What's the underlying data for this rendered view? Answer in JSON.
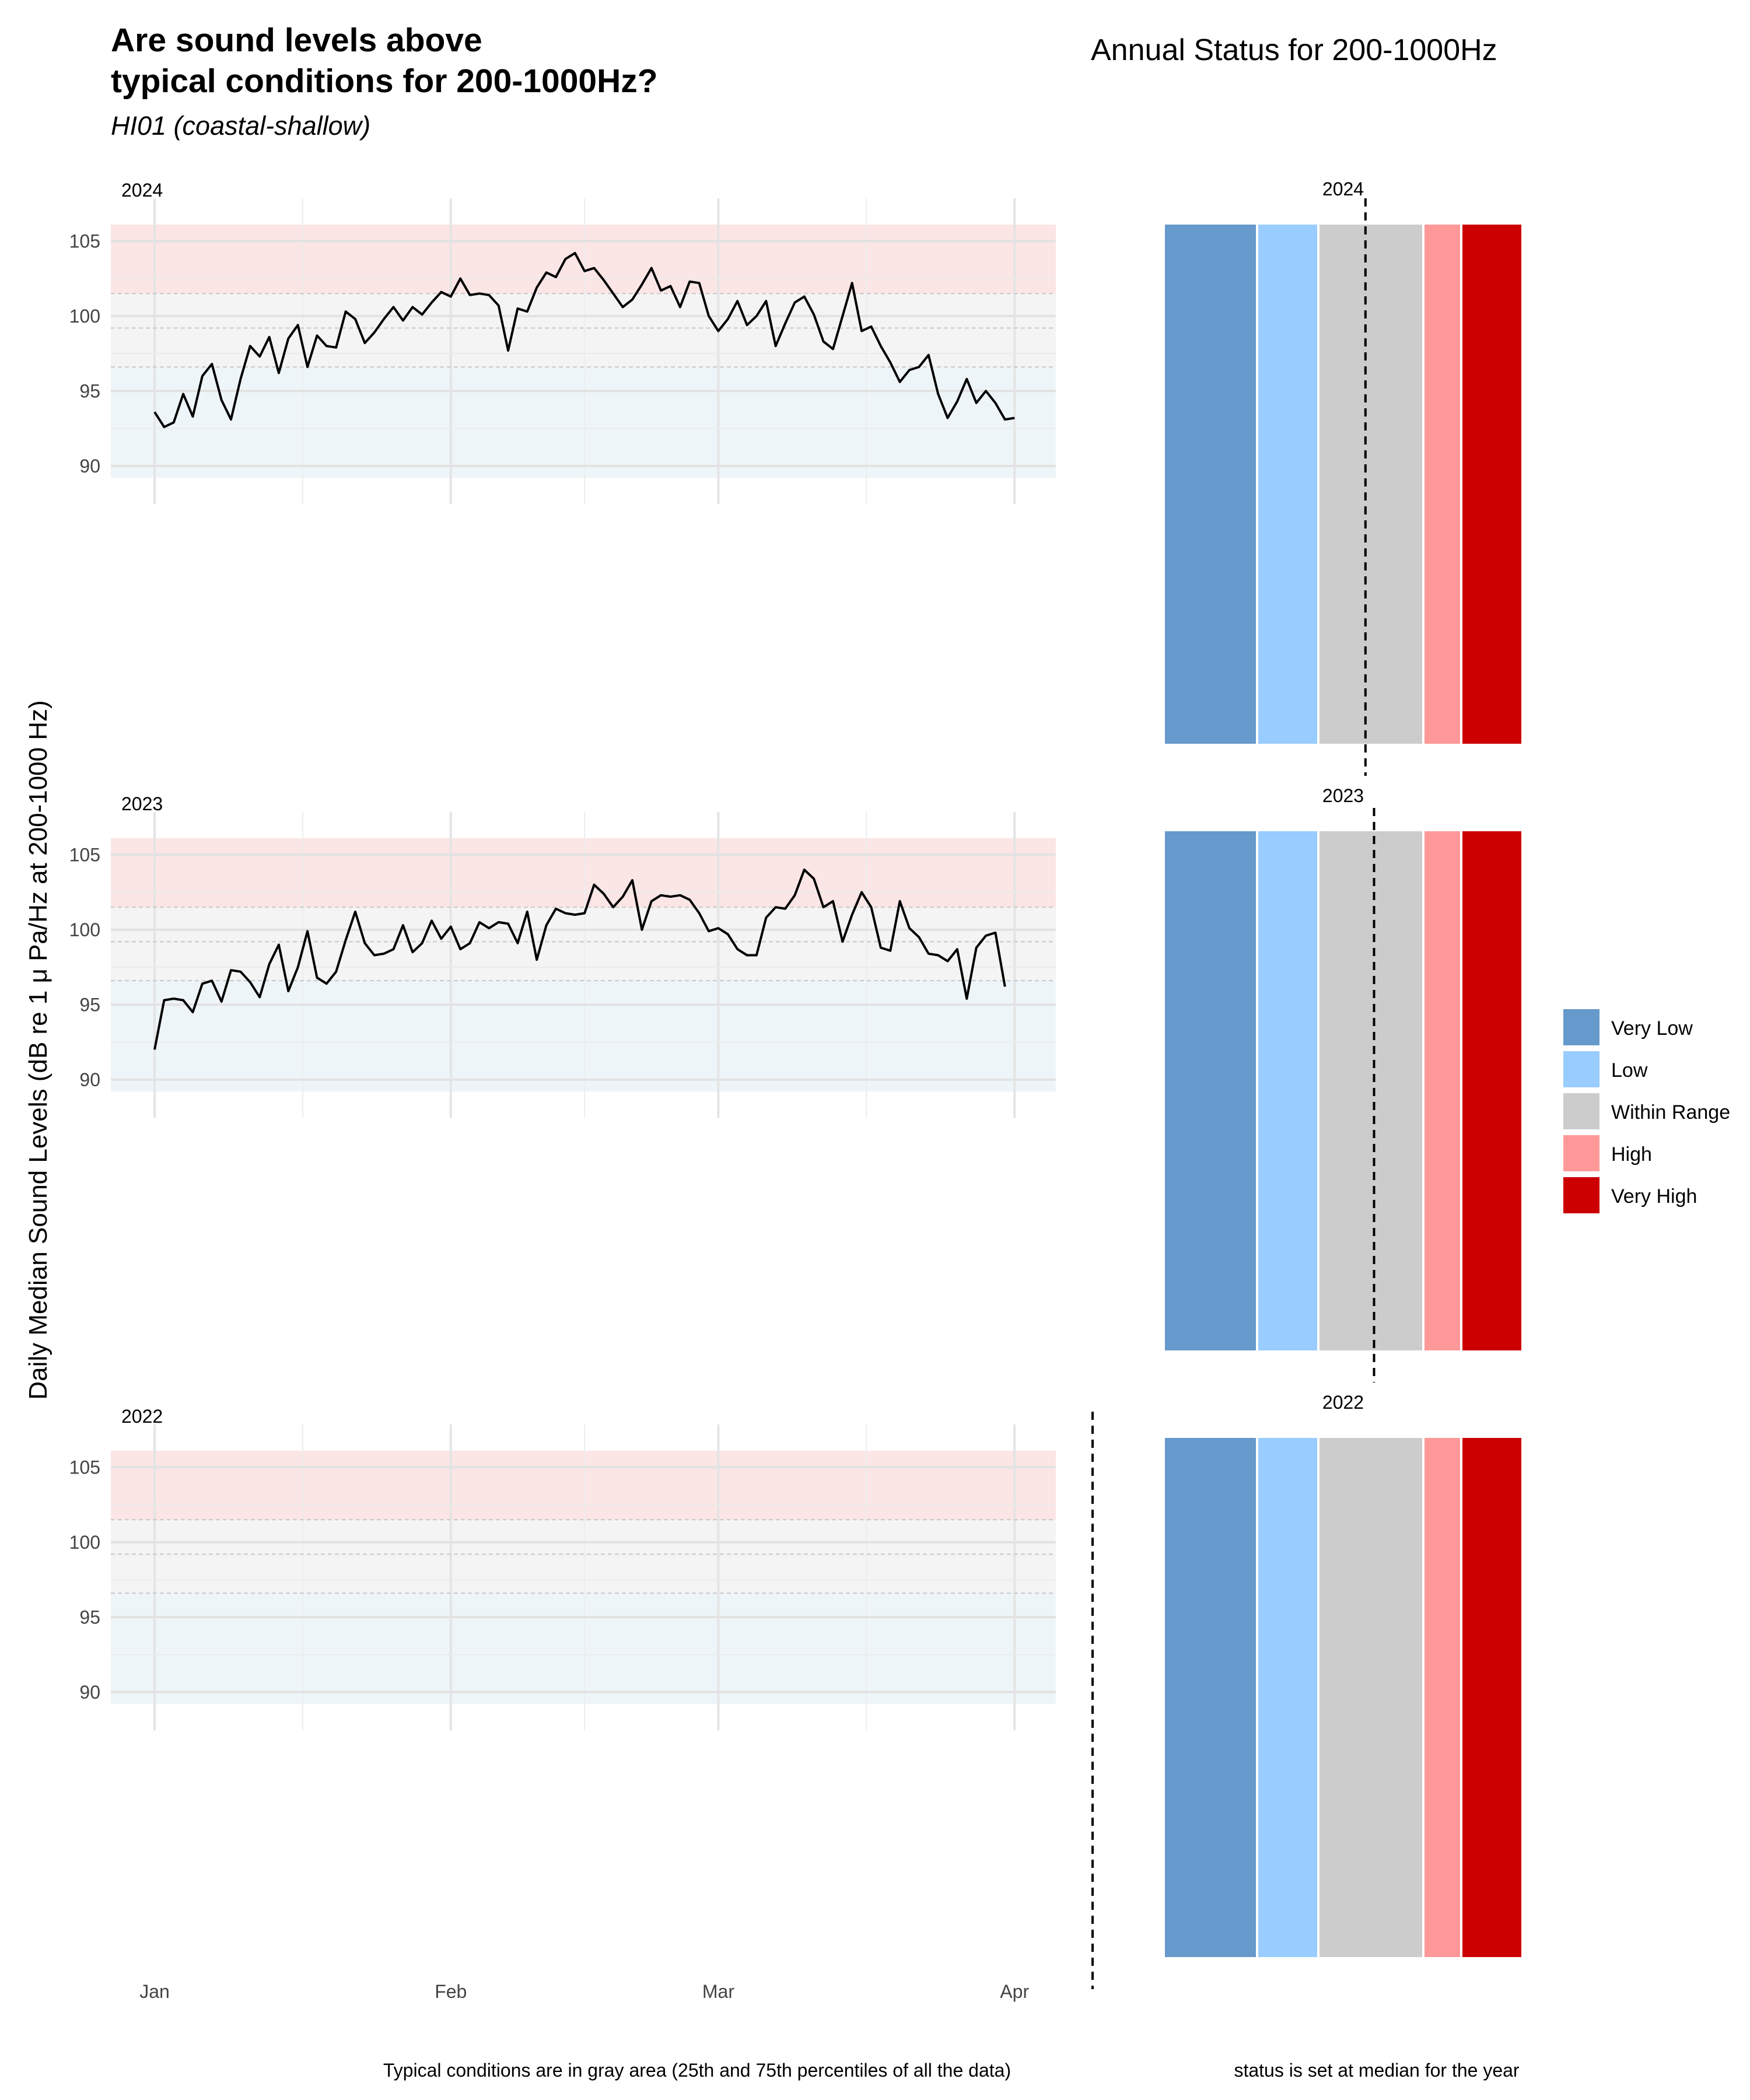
{
  "header": {
    "title_line1": "Are sound levels above",
    "title_line2": "typical conditions for 200-1000Hz?",
    "subtitle": "HI01 (coastal-shallow)",
    "right_title": "Annual Status for 200-1000Hz"
  },
  "captions": {
    "left": "Typical conditions are in gray area (25th and 75th percentiles of all the data)",
    "right": "status is set at median for the year"
  },
  "colors": {
    "very_low": "#6699CC",
    "low": "#99CCFF",
    "within_range": "#CCCCCC",
    "high": "#FF9999",
    "very_high": "#CC0000",
    "band_high": "#FBE5E5",
    "band_typical": "#F4F4F4",
    "band_low": "#EEF5F9"
  },
  "chart_data": [
    {
      "type": "line",
      "title": "Are sound levels above typical conditions for 200-1000Hz?",
      "subtitle": "HI01 (coastal-shallow)",
      "ylabel": "Daily Median Sound Levels (dB re 1 μ Pa/Hz at 200-1000 Hz)",
      "ylim": [
        89.2,
        106.1
      ],
      "yticks": [
        90,
        95,
        100,
        105
      ],
      "x_tick_labels": [
        "Jan",
        "Feb",
        "Mar",
        "Apr"
      ],
      "x_tick_days": [
        0,
        31,
        59,
        90
      ],
      "x_minor_days": [
        15.5,
        45,
        74.5
      ],
      "bands": {
        "p25": 96.6,
        "median": 99.2,
        "p75": 101.5,
        "very_high_top": 106.1,
        "very_low_bottom": 89.2
      },
      "grid": true,
      "facets": [
        {
          "year": "2024",
          "x_days": [
            0,
            1,
            2,
            3,
            4,
            5,
            6,
            7,
            8,
            9,
            10,
            11,
            12,
            13,
            14,
            15,
            16,
            17,
            18,
            19,
            20,
            21,
            22,
            23,
            24,
            25,
            26,
            27,
            28,
            29,
            30,
            31,
            32,
            33,
            34,
            35,
            36,
            37,
            38,
            39,
            40,
            41,
            42,
            43,
            44,
            45,
            46,
            47,
            48,
            49,
            50,
            51,
            52,
            53,
            54,
            55,
            56,
            57,
            58,
            59,
            60,
            61,
            62,
            63,
            64,
            65,
            66,
            67,
            68,
            69,
            70,
            71,
            72,
            73,
            74,
            75,
            76,
            77,
            78,
            79,
            80,
            81,
            82,
            83,
            84,
            85,
            86,
            87,
            88,
            89,
            90
          ],
          "y": [
            93.6,
            92.6,
            92.9,
            94.8,
            93.3,
            96.0,
            96.8,
            94.4,
            93.1,
            95.8,
            98.0,
            97.3,
            98.6,
            96.2,
            98.5,
            99.4,
            96.6,
            98.7,
            98.0,
            97.9,
            100.3,
            99.8,
            98.2,
            98.9,
            99.8,
            100.6,
            99.7,
            100.6,
            100.1,
            100.9,
            101.6,
            101.3,
            102.5,
            101.4,
            101.5,
            101.4,
            100.7,
            97.7,
            100.5,
            100.3,
            101.9,
            102.9,
            102.6,
            103.8,
            104.2,
            103.0,
            103.2,
            102.4,
            101.5,
            100.6,
            101.1,
            102.1,
            103.2,
            101.7,
            102.0,
            100.6,
            102.3,
            102.2,
            100.0,
            99.0,
            99.8,
            101.0,
            99.4,
            100.0,
            101.0,
            98.0,
            99.5,
            100.9,
            101.3,
            100.1,
            98.3,
            97.8,
            100.0,
            102.2,
            99.0,
            99.3,
            98.0,
            96.9,
            95.6,
            96.4,
            96.6,
            97.4,
            94.8,
            93.2,
            94.3,
            95.8,
            94.2,
            95.0,
            94.2,
            93.1,
            93.2
          ]
        },
        {
          "year": "2023",
          "x_days": [
            0,
            1,
            2,
            3,
            4,
            5,
            6,
            7,
            8,
            9,
            10,
            11,
            12,
            13,
            14,
            15,
            16,
            17,
            18,
            19,
            20,
            21,
            22,
            23,
            24,
            25,
            26,
            27,
            28,
            29,
            30,
            31,
            32,
            33,
            34,
            35,
            36,
            37,
            38,
            39,
            40,
            41,
            42,
            43,
            44,
            45,
            46,
            47,
            48,
            49,
            50,
            51,
            52,
            53,
            54,
            55,
            56,
            57,
            58,
            59,
            60,
            61,
            62,
            63,
            64,
            65,
            66,
            67,
            68,
            69,
            70,
            71,
            72,
            73,
            74,
            75,
            76,
            77,
            78,
            79,
            80,
            81,
            82,
            83,
            84,
            85,
            86,
            87,
            88,
            89
          ],
          "y": [
            92.0,
            95.3,
            95.4,
            95.3,
            94.5,
            96.4,
            96.6,
            95.2,
            97.3,
            97.2,
            96.5,
            95.5,
            97.7,
            99.0,
            95.9,
            97.5,
            99.9,
            96.8,
            96.4,
            97.2,
            99.3,
            101.2,
            99.1,
            98.3,
            98.4,
            98.7,
            100.3,
            98.5,
            99.1,
            100.6,
            99.4,
            100.2,
            98.7,
            99.1,
            100.5,
            100.1,
            100.5,
            100.4,
            99.1,
            101.2,
            98.0,
            100.3,
            101.4,
            101.1,
            101.0,
            101.1,
            103.0,
            102.4,
            101.5,
            102.2,
            103.3,
            100.0,
            101.9,
            102.3,
            102.2,
            102.3,
            102.0,
            101.1,
            99.9,
            100.1,
            99.7,
            98.7,
            98.3,
            98.3,
            100.8,
            101.5,
            101.4,
            102.3,
            104.0,
            103.4,
            101.5,
            101.9,
            99.2,
            101.0,
            102.5,
            101.5,
            98.8,
            98.6,
            101.9,
            100.1,
            99.5,
            98.4,
            98.3,
            97.9,
            98.7,
            95.4,
            98.8,
            99.6,
            99.8,
            96.2
          ]
        },
        {
          "year": "2022",
          "x_days": [],
          "y": []
        }
      ]
    },
    {
      "type": "bar",
      "title": "Annual Status for 200-1000Hz",
      "note": "status is set at median for the year",
      "categories": [
        "Very Low",
        "Low",
        "Within Range",
        "High",
        "Very High"
      ],
      "legend_position": "right",
      "facets": [
        {
          "year": "2024",
          "median_marker": 98.8
        },
        {
          "year": "2023",
          "median_marker": 99.2
        },
        {
          "year": "2022",
          "median_marker": null
        }
      ]
    }
  ]
}
